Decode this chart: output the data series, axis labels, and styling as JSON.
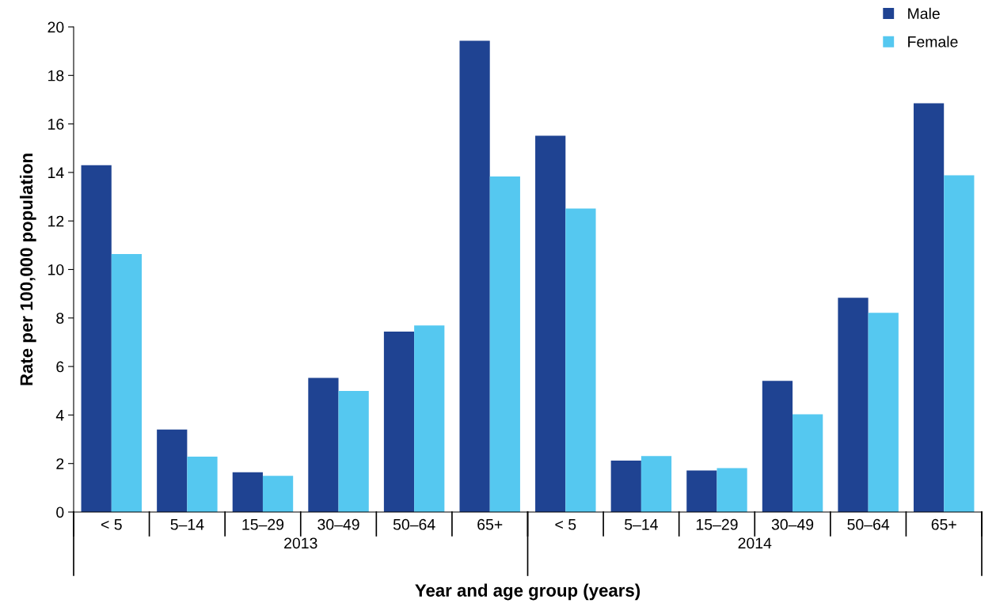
{
  "chart_data": {
    "type": "bar",
    "xlabel": "Year and age group (years)",
    "ylabel": "Rate per 100,000 population",
    "categories": [
      "< 5",
      "5–14",
      "15–29",
      "30–49",
      "50–64",
      "65+",
      "< 5",
      "5–14",
      "15–29",
      "30–49",
      "50–64",
      "65+"
    ],
    "annotations": [
      "2013",
      "2014"
    ],
    "series": [
      {
        "name": "Male",
        "color": "#1f4392",
        "values": [
          14.3,
          3.4,
          1.64,
          5.53,
          7.44,
          19.43,
          15.51,
          2.12,
          1.71,
          5.41,
          8.83,
          16.85
        ]
      },
      {
        "name": "Female",
        "color": "#55c8f0",
        "values": [
          10.64,
          2.28,
          1.49,
          4.99,
          7.69,
          13.83,
          12.51,
          2.31,
          1.81,
          4.03,
          8.21,
          13.88
        ]
      }
    ],
    "ylim": [
      0,
      20
    ],
    "yticks": [
      0,
      2,
      4,
      6,
      8,
      10,
      12,
      14,
      16,
      18,
      20
    ],
    "grid": false,
    "legend": "top right"
  }
}
